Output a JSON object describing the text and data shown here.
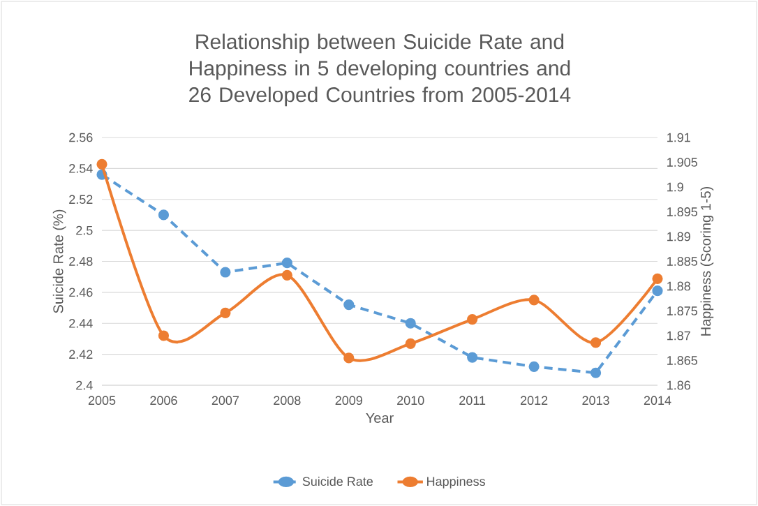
{
  "chart_data": {
    "type": "line",
    "title": "Relationship between Suicide Rate and Happiness in 5 developing countries and 26 Developed Countries from 2005-2014",
    "xlabel": "Year",
    "ylabel": "Suicide Rate (%)",
    "y2label": "Happiness (Scoring 1-5)",
    "categories": [
      "2005",
      "2006",
      "2007",
      "2008",
      "2009",
      "2010",
      "2011",
      "2012",
      "2013",
      "2014"
    ],
    "series": [
      {
        "name": "Suicide Rate",
        "color": "#5b9bd5",
        "line_style": "dashed",
        "values": [
          2.536,
          2.51,
          2.473,
          2.479,
          2.452,
          2.44,
          2.418,
          2.412,
          2.408,
          2.461
        ]
      },
      {
        "name": "Happiness",
        "color": "#ed7d31",
        "line_style": "solid",
        "axis": "y2",
        "values": [
          1.9046,
          1.87,
          1.8746,
          1.8822,
          1.8655,
          1.8684,
          1.8733,
          1.8772,
          1.8686,
          1.8815
        ]
      }
    ],
    "ylim": [
      2.4,
      2.56
    ],
    "yticks": [
      2.4,
      2.42,
      2.44,
      2.46,
      2.48,
      2.5,
      2.52,
      2.54,
      2.56
    ],
    "y2lim": [
      1.86,
      1.91
    ],
    "y2ticks": [
      1.86,
      1.865,
      1.87,
      1.875,
      1.88,
      1.885,
      1.89,
      1.895,
      1.9,
      1.905,
      1.91
    ],
    "grid": "y",
    "legend": "bottom",
    "marker": "circle"
  }
}
